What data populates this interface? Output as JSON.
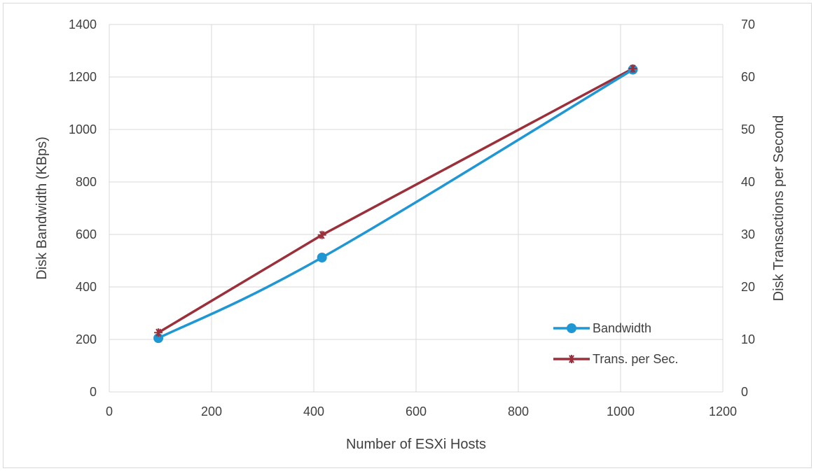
{
  "chart_data": {
    "type": "line",
    "title": "",
    "xlabel": "Number of ESXi Hosts",
    "ylabel": "Disk Bandwidth (KBps)",
    "y2label": "Disk Transactions per Second",
    "xlim": [
      0,
      1200
    ],
    "ylim": [
      0,
      1400
    ],
    "y2lim": [
      0,
      70
    ],
    "x_ticks": [
      "0",
      "200",
      "400",
      "600",
      "800",
      "1000",
      "1200"
    ],
    "y_ticks": [
      "0",
      "200",
      "400",
      "600",
      "800",
      "1000",
      "1200",
      "1400"
    ],
    "y2_ticks": [
      "0",
      "10",
      "20",
      "30",
      "40",
      "50",
      "60",
      "70"
    ],
    "grid": true,
    "legend_position": "bottom-right",
    "series": [
      {
        "name": "Bandwidth",
        "axis": "left",
        "color": "#1f97d4",
        "marker": "circle",
        "smooth": true,
        "x": [
          96,
          416,
          1024
        ],
        "y": [
          205,
          512,
          1228
        ]
      },
      {
        "name": "Trans. per Sec.",
        "axis": "right",
        "color": "#9b2f3a",
        "marker": "star",
        "smooth": false,
        "x": [
          96,
          416,
          1024
        ],
        "y": [
          11.3,
          29.9,
          61.6
        ]
      }
    ]
  }
}
